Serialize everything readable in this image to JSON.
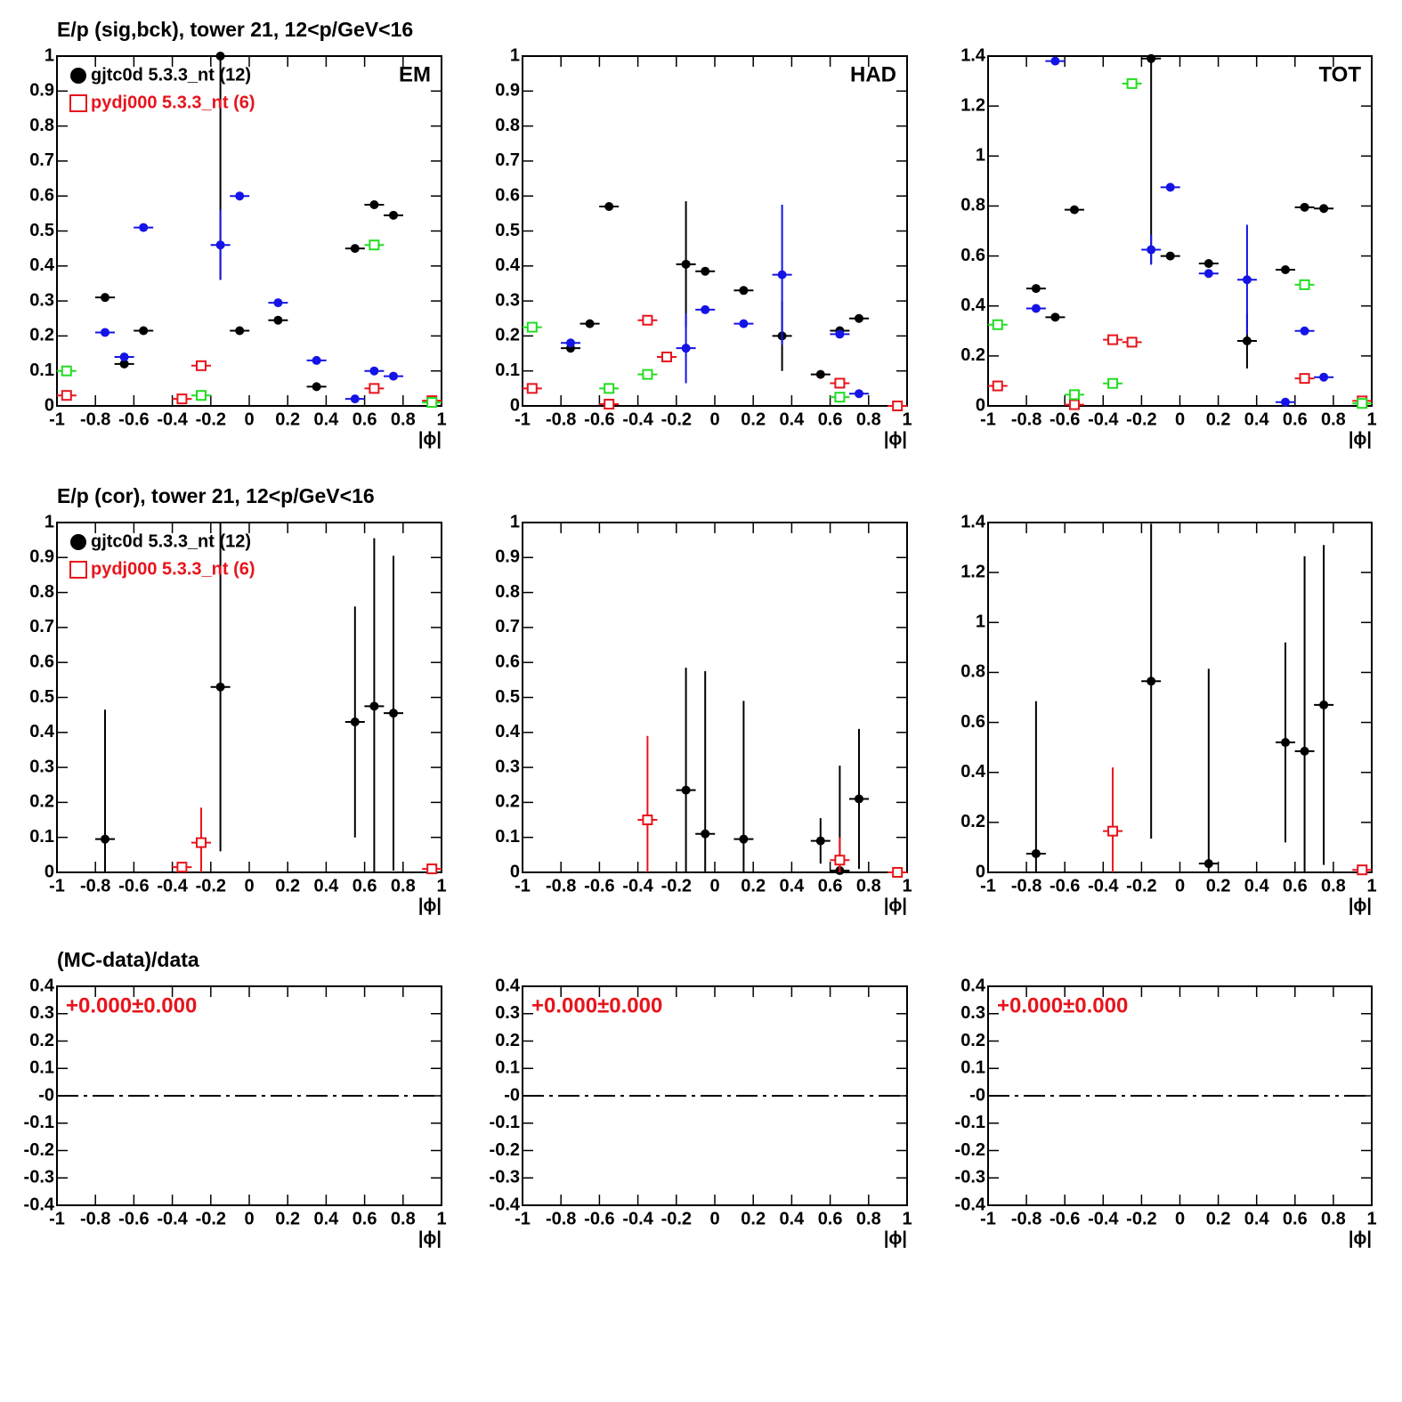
{
  "chart_data": [
    {
      "type": "scatter",
      "title": "E/p (sig,bck), tower 21, 12<p/GeV<16",
      "label": "EM",
      "xlabel": "|ϕ|",
      "xlim": [
        -1,
        1
      ],
      "xticks": [
        -1,
        -0.8,
        -0.6,
        -0.4,
        -0.2,
        0,
        0.2,
        0.4,
        0.6,
        0.8,
        1
      ],
      "ylim": [
        0,
        1
      ],
      "yticks": [
        0,
        0.1,
        0.2,
        0.3,
        0.4,
        0.5,
        0.6,
        0.7,
        0.8,
        0.9,
        1
      ],
      "legend": "top-left",
      "series": [
        {
          "name": "gjtc0d 5.3.3_nt (12)",
          "color": "#000000",
          "marker": "circle",
          "x": [
            -0.75,
            -0.65,
            -0.55,
            -0.15,
            -0.05,
            0.15,
            0.35,
            0.55,
            0.65,
            0.75
          ],
          "values": [
            0.31,
            0.12,
            0.215,
            1.0,
            0.215,
            0.245,
            0.055,
            0.45,
            0.575,
            0.545
          ],
          "errors": [
            null,
            null,
            null,
            0.64,
            null,
            null,
            null,
            null,
            null,
            null
          ]
        },
        {
          "name": "pydj000 5.3.3_nt (6)",
          "color": "#e8141c",
          "marker": "square",
          "x": [
            -0.95,
            -0.35,
            -0.25,
            0.65,
            0.95
          ],
          "values": [
            0.03,
            0.02,
            0.115,
            0.05,
            0.015
          ]
        },
        {
          "color": "#1414e6",
          "marker": "circle",
          "x": [
            -0.75,
            -0.65,
            -0.55,
            -0.15,
            -0.05,
            0.15,
            0.35,
            0.55,
            0.65,
            0.75
          ],
          "values": [
            0.21,
            0.14,
            0.51,
            0.46,
            0.6,
            0.295,
            0.13,
            0.02,
            0.1,
            0.085
          ],
          "errors": [
            null,
            null,
            null,
            0.1,
            null,
            null,
            null,
            null,
            null,
            null
          ]
        },
        {
          "color": "#22dd22",
          "marker": "square",
          "x": [
            -0.95,
            -0.25,
            0.65,
            0.95
          ],
          "values": [
            0.1,
            0.03,
            0.46,
            0.01
          ]
        }
      ]
    },
    {
      "type": "scatter",
      "label": "HAD",
      "xlabel": "|ϕ|",
      "xlim": [
        -1,
        1
      ],
      "xticks": [
        -1,
        -0.8,
        -0.6,
        -0.4,
        -0.2,
        0,
        0.2,
        0.4,
        0.6,
        0.8,
        1
      ],
      "ylim": [
        0,
        1
      ],
      "yticks": [
        0,
        0.1,
        0.2,
        0.3,
        0.4,
        0.5,
        0.6,
        0.7,
        0.8,
        0.9,
        1
      ],
      "series": [
        {
          "color": "#000000",
          "marker": "circle",
          "x": [
            -0.75,
            -0.65,
            -0.55,
            -0.15,
            -0.05,
            0.15,
            0.35,
            0.55,
            0.65,
            0.75
          ],
          "values": [
            0.165,
            0.235,
            0.57,
            0.405,
            0.385,
            0.33,
            0.2,
            0.09,
            0.215,
            0.25
          ],
          "errors": [
            null,
            null,
            null,
            0.18,
            null,
            null,
            0.1,
            null,
            null,
            null
          ]
        },
        {
          "color": "#e8141c",
          "marker": "square",
          "x": [
            -0.95,
            -0.55,
            -0.35,
            -0.25,
            0.65,
            0.95
          ],
          "values": [
            0.05,
            0.005,
            0.245,
            0.14,
            0.065,
            0
          ]
        },
        {
          "color": "#1414e6",
          "marker": "circle",
          "x": [
            -0.75,
            -0.15,
            -0.05,
            0.15,
            0.35,
            0.65,
            0.75
          ],
          "values": [
            0.18,
            0.165,
            0.275,
            0.235,
            0.375,
            0.205,
            0.035
          ],
          "errors": [
            null,
            0.1,
            null,
            null,
            0.2,
            null,
            null
          ]
        },
        {
          "color": "#22dd22",
          "marker": "square",
          "x": [
            -0.95,
            -0.55,
            -0.35,
            0.65
          ],
          "values": [
            0.225,
            0.05,
            0.09,
            0.025
          ]
        }
      ]
    },
    {
      "type": "scatter",
      "label": "TOT",
      "xlabel": "|ϕ|",
      "xlim": [
        -1,
        1
      ],
      "xticks": [
        -1,
        -0.8,
        -0.6,
        -0.4,
        -0.2,
        0,
        0.2,
        0.4,
        0.6,
        0.8,
        1
      ],
      "ylim": [
        0,
        1.4
      ],
      "yticks": [
        0,
        0.2,
        0.4,
        0.6,
        0.8,
        1,
        1.2,
        1.4
      ],
      "series": [
        {
          "color": "#000000",
          "marker": "circle",
          "x": [
            -0.75,
            -0.65,
            -0.55,
            -0.15,
            -0.05,
            0.15,
            0.35,
            0.55,
            0.65,
            0.75
          ],
          "values": [
            0.47,
            0.355,
            0.785,
            1.39,
            0.6,
            0.57,
            0.26,
            0.545,
            0.795,
            0.79
          ],
          "errors": [
            null,
            null,
            null,
            0.82,
            null,
            null,
            0.11,
            null,
            null,
            null
          ]
        },
        {
          "color": "#e8141c",
          "marker": "square",
          "x": [
            -0.95,
            -0.55,
            -0.35,
            -0.25,
            0.65,
            0.95
          ],
          "values": [
            0.08,
            0.005,
            0.265,
            0.255,
            0.11,
            0.02
          ]
        },
        {
          "color": "#1414e6",
          "marker": "circle",
          "x": [
            -0.75,
            -0.65,
            -0.15,
            -0.05,
            0.15,
            0.35,
            0.55,
            0.65,
            0.75
          ],
          "values": [
            0.39,
            1.38,
            0.625,
            0.875,
            0.53,
            0.505,
            0.015,
            0.3,
            0.115
          ],
          "errors": [
            null,
            null,
            0.06,
            null,
            null,
            0.22,
            null,
            null,
            null
          ]
        },
        {
          "color": "#22dd22",
          "marker": "square",
          "x": [
            -0.95,
            -0.55,
            -0.35,
            -0.25,
            0.65,
            0.95
          ],
          "values": [
            0.325,
            0.045,
            0.09,
            1.29,
            0.485,
            0.01
          ]
        }
      ]
    },
    {
      "type": "scatter",
      "title": "E/p (cor), tower 21, 12<p/GeV<16",
      "xlabel": "|ϕ|",
      "xlim": [
        -1,
        1
      ],
      "xticks": [
        -1,
        -0.8,
        -0.6,
        -0.4,
        -0.2,
        0,
        0.2,
        0.4,
        0.6,
        0.8,
        1
      ],
      "ylim": [
        0,
        1
      ],
      "yticks": [
        0,
        0.1,
        0.2,
        0.3,
        0.4,
        0.5,
        0.6,
        0.7,
        0.8,
        0.9,
        1
      ],
      "legend": "top-left",
      "series": [
        {
          "name": "gjtc0d 5.3.3_nt (12)",
          "color": "#000000",
          "marker": "circle",
          "x": [
            -0.75,
            -0.15,
            0.55,
            0.65,
            0.75
          ],
          "values": [
            0.095,
            0.53,
            0.43,
            0.475,
            0.455
          ],
          "errors": [
            0.37,
            0.47,
            0.33,
            0.48,
            0.45
          ]
        },
        {
          "name": "pydj000 5.3.3_nt (6)",
          "color": "#e8141c",
          "marker": "square",
          "x": [
            -0.35,
            -0.25,
            0.95
          ],
          "values": [
            0.015,
            0.085,
            0.01
          ],
          "errors": [
            null,
            0.1,
            null
          ]
        }
      ]
    },
    {
      "type": "scatter",
      "xlabel": "|ϕ|",
      "xlim": [
        -1,
        1
      ],
      "xticks": [
        -1,
        -0.8,
        -0.6,
        -0.4,
        -0.2,
        0,
        0.2,
        0.4,
        0.6,
        0.8,
        1
      ],
      "ylim": [
        0,
        1
      ],
      "yticks": [
        0,
        0.1,
        0.2,
        0.3,
        0.4,
        0.5,
        0.6,
        0.7,
        0.8,
        0.9,
        1
      ],
      "series": [
        {
          "color": "#000000",
          "marker": "circle",
          "x": [
            -0.15,
            -0.05,
            0.15,
            0.55,
            0.65,
            0.75
          ],
          "values": [
            0.235,
            0.11,
            0.095,
            0.09,
            0.005,
            0.21
          ],
          "errors": [
            0.35,
            0.465,
            0.395,
            0.065,
            0.3,
            0.2
          ]
        },
        {
          "color": "#e8141c",
          "marker": "square",
          "x": [
            -0.35,
            0.65,
            0.95
          ],
          "values": [
            0.15,
            0.035,
            0
          ],
          "errors": [
            0.24,
            0.065,
            null
          ]
        }
      ]
    },
    {
      "type": "scatter",
      "xlabel": "|ϕ|",
      "xlim": [
        -1,
        1
      ],
      "xticks": [
        -1,
        -0.8,
        -0.6,
        -0.4,
        -0.2,
        0,
        0.2,
        0.4,
        0.6,
        0.8,
        1
      ],
      "ylim": [
        0,
        1.4
      ],
      "yticks": [
        0,
        0.2,
        0.4,
        0.6,
        0.8,
        1,
        1.2,
        1.4
      ],
      "series": [
        {
          "color": "#000000",
          "marker": "circle",
          "x": [
            -0.75,
            -0.15,
            0.15,
            0.55,
            0.65,
            0.75
          ],
          "values": [
            0.075,
            0.765,
            0.035,
            0.52,
            0.485,
            0.67
          ],
          "errors": [
            0.61,
            0.63,
            0.78,
            0.4,
            0.78,
            0.64
          ]
        },
        {
          "color": "#e8141c",
          "marker": "square",
          "x": [
            -0.35,
            0.95
          ],
          "values": [
            0.165,
            0.01
          ],
          "errors": [
            0.255,
            null
          ]
        }
      ]
    },
    {
      "type": "scatter",
      "title": "(MC-data)/data",
      "annotation": "+0.000±0.000",
      "annotation_color": "#e8141c",
      "zero_line": true,
      "xlabel": "|ϕ|",
      "xlim": [
        -1,
        1
      ],
      "xticks": [
        -1,
        -0.8,
        -0.6,
        -0.4,
        -0.2,
        0,
        0.2,
        0.4,
        0.6,
        0.8,
        1
      ],
      "ylim": [
        -0.4,
        0.4
      ],
      "yticks": [
        -0.4,
        -0.3,
        -0.2,
        -0.1,
        {
          "value": 0,
          "label": "-0"
        },
        0.1,
        0.2,
        0.3,
        0.4
      ],
      "series": []
    },
    {
      "type": "scatter",
      "annotation": "+0.000±0.000",
      "annotation_color": "#e8141c",
      "zero_line": true,
      "xlabel": "|ϕ|",
      "xlim": [
        -1,
        1
      ],
      "xticks": [
        -1,
        -0.8,
        -0.6,
        -0.4,
        -0.2,
        0,
        0.2,
        0.4,
        0.6,
        0.8,
        1
      ],
      "ylim": [
        -0.4,
        0.4
      ],
      "yticks": [
        -0.4,
        -0.3,
        -0.2,
        -0.1,
        {
          "value": 0,
          "label": "-0"
        },
        0.1,
        0.2,
        0.3,
        0.4
      ],
      "series": []
    },
    {
      "type": "scatter",
      "annotation": "+0.000±0.000",
      "annotation_color": "#e8141c",
      "zero_line": true,
      "xlabel": "|ϕ|",
      "xlim": [
        -1,
        1
      ],
      "xticks": [
        -1,
        -0.8,
        -0.6,
        -0.4,
        -0.2,
        0,
        0.2,
        0.4,
        0.6,
        0.8,
        1
      ],
      "ylim": [
        -0.4,
        0.4
      ],
      "yticks": [
        -0.4,
        -0.3,
        -0.2,
        -0.1,
        {
          "value": 0,
          "label": "-0"
        },
        0.1,
        0.2,
        0.3,
        0.4
      ],
      "series": []
    }
  ]
}
